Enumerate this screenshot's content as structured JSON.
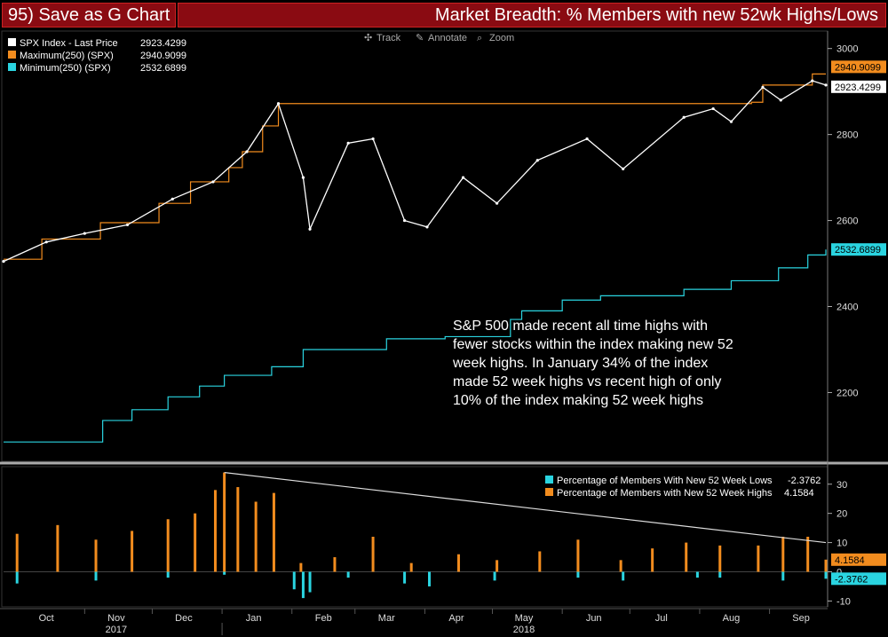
{
  "header": {
    "function_label": "95) Save as G Chart",
    "title": "Market Breadth: % Members with new 52wk Highs/Lows"
  },
  "toolbar": {
    "track": "Track",
    "annotate": "Annotate",
    "zoom": "Zoom"
  },
  "colors": {
    "price": "#ffffff",
    "maximum": "#f28c1e",
    "minimum": "#2ad4e0",
    "highs_bar": "#f28c1e",
    "lows_bar": "#2ad4e0",
    "header_bg": "#8a0b12"
  },
  "annotation": {
    "lines": [
      "S&P 500 made recent all time highs with",
      "fewer stocks within the index making new 52",
      "week highs.  In January 34% of the index",
      "made 52 week highs vs recent high of only",
      "10% of the index making 52 week highs"
    ]
  },
  "chart_data": [
    {
      "type": "line",
      "legend": [
        {
          "name": "SPX Index - Last Price",
          "value": "2923.4299",
          "color": "#ffffff"
        },
        {
          "name": "Maximum(250) (SPX)",
          "value": "2940.9099",
          "color": "#f28c1e"
        },
        {
          "name": "Minimum(250) (SPX)",
          "value": "2532.6899",
          "color": "#2ad4e0"
        }
      ],
      "ylim": [
        2040,
        3020
      ],
      "yticks": [
        2200,
        2400,
        2600,
        2800,
        3000
      ],
      "last_labels": [
        {
          "value": 2940.9099,
          "text": "2940.9099",
          "color": "#f28c1e"
        },
        {
          "value": 2923.4299,
          "text": "2923.4299",
          "color": "#ffffff"
        },
        {
          "value": 2532.6899,
          "text": "2532.6899",
          "color": "#2ad4e0"
        }
      ],
      "x": [
        "2017-09-26",
        "2017-10-15",
        "2017-11-01",
        "2017-11-20",
        "2017-12-10",
        "2017-12-28",
        "2018-01-12",
        "2018-01-26",
        "2018-02-06",
        "2018-02-09",
        "2018-02-26",
        "2018-03-09",
        "2018-03-23",
        "2018-04-02",
        "2018-04-18",
        "2018-05-03",
        "2018-05-21",
        "2018-06-12",
        "2018-06-28",
        "2018-07-25",
        "2018-08-07",
        "2018-08-15",
        "2018-08-29",
        "2018-09-06",
        "2018-09-20",
        "2018-09-26"
      ],
      "price": [
        2505,
        2550,
        2570,
        2590,
        2650,
        2690,
        2760,
        2872,
        2700,
        2580,
        2780,
        2790,
        2600,
        2585,
        2700,
        2640,
        2740,
        2790,
        2720,
        2840,
        2860,
        2830,
        2910,
        2880,
        2925,
        2915
      ],
      "max_x": [
        "2017-09-26",
        "2017-10-13",
        "2017-11-08",
        "2017-12-04",
        "2017-12-18",
        "2018-01-04",
        "2018-01-10",
        "2018-01-19",
        "2018-01-26",
        "2018-08-24",
        "2018-08-29",
        "2018-09-20",
        "2018-09-26"
      ],
      "max_y": [
        2510,
        2557,
        2595,
        2640,
        2690,
        2723,
        2760,
        2820,
        2872,
        2875,
        2915,
        2940.9,
        2940.9
      ],
      "min_x": [
        "2017-09-26",
        "2017-11-03",
        "2017-11-09",
        "2017-11-22",
        "2017-12-08",
        "2017-12-22",
        "2018-01-02",
        "2018-01-23",
        "2018-02-06",
        "2018-03-15",
        "2018-04-10",
        "2018-05-09",
        "2018-05-14",
        "2018-06-01",
        "2018-06-18",
        "2018-07-25",
        "2018-08-15",
        "2018-09-05",
        "2018-09-18",
        "2018-09-26"
      ],
      "min_y": [
        2085,
        2085,
        2135,
        2160,
        2190,
        2215,
        2240,
        2260,
        2300,
        2325,
        2330,
        2370,
        2390,
        2415,
        2425,
        2440,
        2460,
        2490,
        2520,
        2532.7
      ]
    },
    {
      "type": "bar",
      "legend": [
        {
          "name": "Percentage of Members With New 52 Week Lows",
          "value": "-2.3762",
          "color": "#2ad4e0"
        },
        {
          "name": "Percentage of Members with New 52 Week Highs",
          "value": "4.1584",
          "color": "#f28c1e"
        }
      ],
      "ylim": [
        -12,
        36
      ],
      "yticks": [
        -10,
        0,
        10,
        20,
        30
      ],
      "last_labels": [
        {
          "value": 4.1584,
          "text": "4.1584",
          "color": "#f28c1e"
        },
        {
          "value": -2.3762,
          "text": "-2.3762",
          "color": "#2ad4e0"
        }
      ],
      "trendline": {
        "x": [
          "2018-01-02",
          "2018-09-26"
        ],
        "y": [
          34,
          10
        ]
      },
      "highs_x": [
        "2017-10-02",
        "2017-10-20",
        "2017-11-06",
        "2017-11-22",
        "2017-12-08",
        "2017-12-20",
        "2017-12-29",
        "2018-01-02",
        "2018-01-08",
        "2018-01-16",
        "2018-01-24",
        "2018-02-05",
        "2018-02-20",
        "2018-03-09",
        "2018-03-26",
        "2018-04-16",
        "2018-05-03",
        "2018-05-22",
        "2018-06-08",
        "2018-06-27",
        "2018-07-11",
        "2018-07-26",
        "2018-08-10",
        "2018-08-27",
        "2018-09-07",
        "2018-09-18",
        "2018-09-26"
      ],
      "highs_y": [
        13,
        16,
        11,
        14,
        18,
        20,
        28,
        34,
        29,
        24,
        27,
        3,
        5,
        12,
        3,
        6,
        4,
        7,
        11,
        4,
        8,
        10,
        9,
        9,
        12,
        12,
        4.16
      ],
      "lows_x": [
        "2017-10-02",
        "2017-11-06",
        "2017-12-08",
        "2018-01-02",
        "2018-02-02",
        "2018-02-06",
        "2018-02-09",
        "2018-02-26",
        "2018-03-23",
        "2018-04-03",
        "2018-05-02",
        "2018-06-08",
        "2018-06-28",
        "2018-07-31",
        "2018-08-10",
        "2018-09-07",
        "2018-09-26"
      ],
      "lows_y": [
        -4,
        -3,
        -2,
        -1,
        -6,
        -9,
        -7,
        -2,
        -4,
        -5,
        -3,
        -2,
        -3,
        -2,
        -2,
        -3,
        -2.38
      ]
    }
  ],
  "x_axis": {
    "months": [
      "Oct",
      "Nov",
      "Dec",
      "Jan",
      "Feb",
      "Mar",
      "Apr",
      "May",
      "Jun",
      "Jul",
      "Aug",
      "Sep"
    ],
    "years": [
      "2017",
      "2018"
    ]
  }
}
